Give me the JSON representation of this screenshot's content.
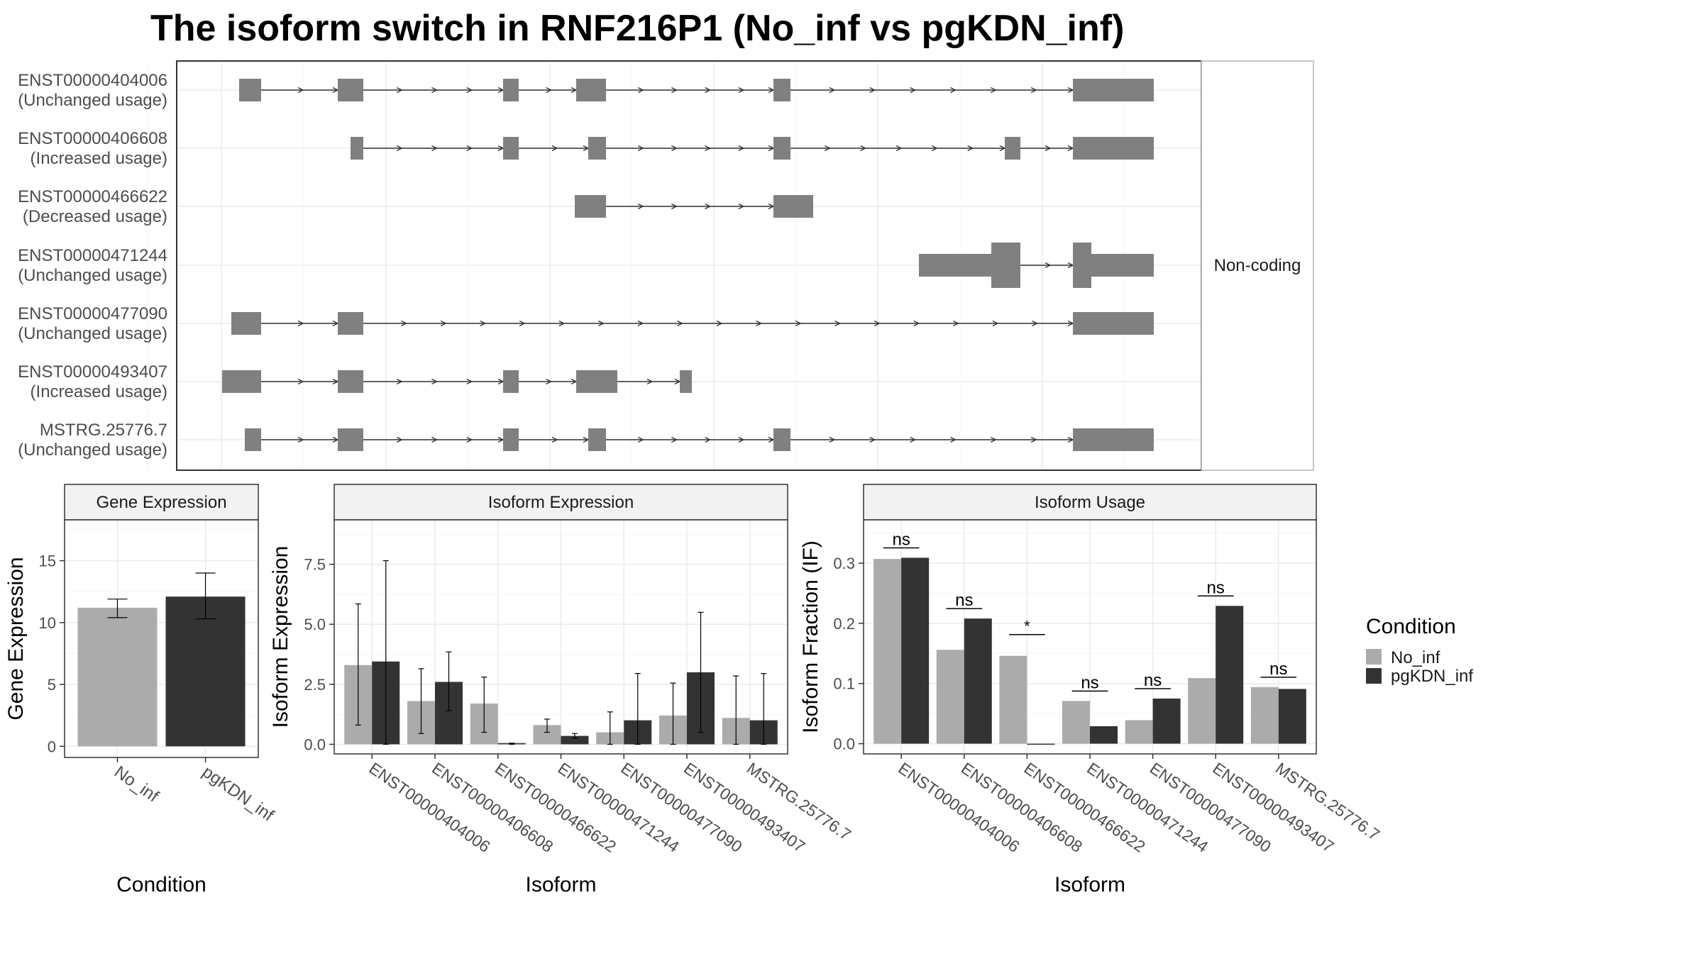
{
  "title": "The isoform switch in RNF216P1 (No_inf vs pgKDN_inf)",
  "colors": {
    "no_inf": "#ABABAB",
    "pgkdn_inf": "#333333",
    "exon": "#808080",
    "strip": "#F2F2F2",
    "grid": "#EBEBEB"
  },
  "chart_data": [
    {
      "type": "other",
      "name": "isoform-structure",
      "strip_label": "Non-coding",
      "rows": [
        {
          "id": "ENST00000404006",
          "usage": "(Unchanged usage)"
        },
        {
          "id": "ENST00000406608",
          "usage": "(Increased usage)"
        },
        {
          "id": "ENST00000466622",
          "usage": "(Decreased usage)"
        },
        {
          "id": "ENST00000471244",
          "usage": "(Unchanged usage)"
        },
        {
          "id": "ENST00000477090",
          "usage": "(Unchanged usage)"
        },
        {
          "id": "ENST00000493407",
          "usage": "(Increased usage)"
        },
        {
          "id": "MSTRG.25776.7",
          "usage": "(Unchanged usage)"
        }
      ]
    },
    {
      "type": "bar",
      "name": "gene-expression",
      "strip_title": "Gene Expression",
      "xlabel": "Condition",
      "ylabel": "Gene Expression",
      "categories": [
        "No_inf",
        "pgKDN_inf"
      ],
      "values": [
        11.2,
        12.1
      ],
      "err_low": [
        10.4,
        10.3
      ],
      "err_high": [
        11.9,
        14.0
      ],
      "ylim": [
        -0.9,
        18.3
      ],
      "yticks": [
        0,
        5,
        10,
        15
      ]
    },
    {
      "type": "bar",
      "name": "isoform-expression",
      "strip_title": "Isoform Expression",
      "xlabel": "Isoform",
      "ylabel": "Isoform Expression",
      "categories": [
        "ENST00000404006",
        "ENST00000406608",
        "ENST00000466622",
        "ENST00000471244",
        "ENST00000477090",
        "ENST00000493407",
        "MSTRG.25776.7"
      ],
      "series": [
        {
          "name": "No_inf",
          "values": [
            3.3,
            1.8,
            1.7,
            0.8,
            0.5,
            1.2,
            1.1
          ],
          "err_low": [
            0.8,
            0.45,
            0.5,
            0.5,
            0.0,
            0.0,
            0.0
          ],
          "err_high": [
            5.85,
            3.15,
            2.8,
            1.05,
            1.35,
            2.55,
            2.85
          ]
        },
        {
          "name": "pgKDN_inf",
          "values": [
            3.45,
            2.6,
            0.05,
            0.35,
            1.0,
            3.0,
            1.0
          ],
          "err_low": [
            0.0,
            1.4,
            0.0,
            0.25,
            0.0,
            0.5,
            0.0
          ],
          "err_high": [
            7.65,
            3.85,
            0.05,
            0.45,
            2.95,
            5.5,
            2.95
          ]
        }
      ],
      "ylim": [
        -0.4,
        9.35
      ],
      "yticks": [
        0.0,
        2.5,
        5.0,
        7.5
      ],
      "ytick_labels": [
        "0.0",
        "2.5",
        "5.0",
        "7.5"
      ]
    },
    {
      "type": "bar",
      "name": "isoform-usage",
      "strip_title": "Isoform Usage",
      "xlabel": "Isoform",
      "ylabel": "Isoform Fraction (IF)",
      "categories": [
        "ENST00000404006",
        "ENST00000406608",
        "ENST00000466622",
        "ENST00000471244",
        "ENST00000477090",
        "ENST00000493407",
        "MSTRG.25776.7"
      ],
      "series": [
        {
          "name": "No_inf",
          "values": [
            0.307,
            0.156,
            0.146,
            0.071,
            0.039,
            0.109,
            0.094
          ]
        },
        {
          "name": "pgKDN_inf",
          "values": [
            0.309,
            0.208,
            0.0,
            0.029,
            0.075,
            0.229,
            0.091
          ]
        }
      ],
      "significance": [
        "ns",
        "ns",
        "*",
        "ns",
        "ns",
        "ns",
        "ns"
      ],
      "ylim": [
        -0.017,
        0.372
      ],
      "yticks": [
        0.0,
        0.1,
        0.2,
        0.3
      ],
      "ytick_labels": [
        "0.0",
        "0.1",
        "0.2",
        "0.3"
      ]
    }
  ],
  "legend": {
    "title": "Condition",
    "items": [
      "No_inf",
      "pgKDN_inf"
    ]
  }
}
